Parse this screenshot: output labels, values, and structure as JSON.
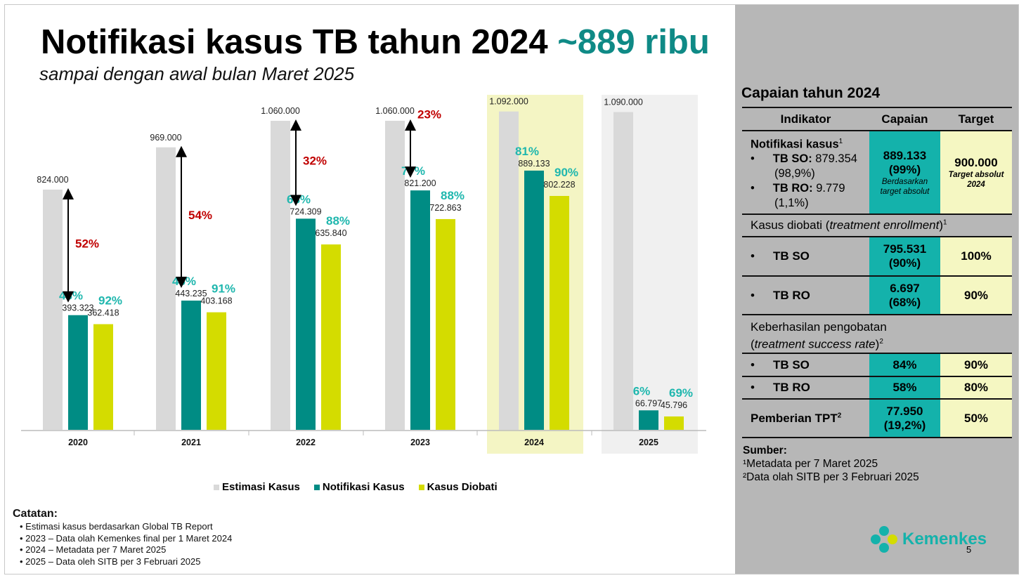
{
  "title": {
    "main": "Notifikasi kasus TB tahun 2024",
    "highlight": "~889 ribu",
    "subtitle": "sampai dengan awal bulan Maret 2025"
  },
  "chart_data": {
    "type": "bar",
    "categories": [
      "2020",
      "2021",
      "2022",
      "2023",
      "2024",
      "2025"
    ],
    "series": [
      {
        "name": "Estimasi Kasus",
        "color": "#d9d9d9",
        "values": [
          824000,
          969000,
          1060000,
          1060000,
          1092000,
          1090000
        ],
        "labels": [
          "824.000",
          "969.000",
          "1.060.000",
          "1.060.000",
          "1.092.000",
          "1.090.000"
        ]
      },
      {
        "name": "Notifikasi Kasus",
        "color": "#008c84",
        "values": [
          393323,
          443235,
          724309,
          821200,
          889133,
          66797
        ],
        "labels": [
          "393.323",
          "443.235",
          "724.309",
          "821.200",
          "889.133",
          "66.797"
        ],
        "pct": [
          "48%",
          "46%",
          "68%",
          "77%",
          "81%",
          "6%"
        ]
      },
      {
        "name": "Kasus Diobati",
        "color": "#d4dc00",
        "values": [
          362418,
          403168,
          635840,
          722863,
          802228,
          45796
        ],
        "labels": [
          "362.418",
          "403.168",
          "635.840",
          "722.863",
          "802.228",
          "45.796"
        ],
        "pct": [
          "92%",
          "91%",
          "88%",
          "88%",
          "90%",
          "69%"
        ]
      }
    ],
    "gap_pct": [
      "52%",
      "54%",
      "32%",
      "23%",
      null,
      null
    ],
    "ylim": [
      0,
      1100000
    ],
    "highlighted": [
      "2024",
      "2025"
    ],
    "legend": "bottom"
  },
  "notes": {
    "title": "Catatan:",
    "items": [
      "Estimasi kasus berdasarkan Global TB Report",
      "2023 – Data olah Kemenkes final per 1 Maret 2024",
      "2024 – Metadata per 7 Maret 2025",
      "2025 – Data oleh SITB per 3 Februari 2025"
    ]
  },
  "panel": {
    "title": "Capaian tahun 2024",
    "headers": [
      "Indikator",
      "Capaian",
      "Target"
    ],
    "notif": {
      "label": "Notifikasi kasus",
      "sup": "1",
      "so_label": "TB SO:",
      "so_val": "879.354",
      "so_pct": "(98,9%)",
      "ro_label": "TB RO:",
      "ro_val": "9.779",
      "ro_pct": "(1,1%)",
      "capaian": "889.133",
      "capaian_pct": "(99%)",
      "capaian_note": "Berdasarkan target absolut",
      "target": "900.000",
      "target_note": "Target absolut 2024"
    },
    "diobati": {
      "label": "Kasus diobati (",
      "label_it": "treatment enrollment",
      "label_end": ")",
      "sup": "1",
      "so": {
        "label": "TB SO",
        "capaian": "795.531",
        "pct": "(90%)",
        "target": "100%"
      },
      "ro": {
        "label": "TB RO",
        "capaian": "6.697",
        "pct": "(68%)",
        "target": "90%"
      }
    },
    "keberhasilan": {
      "label": "Keberhasilan pengobatan",
      "label_it": "treatment success rate",
      "sup": "2",
      "so": {
        "label": "TB SO",
        "capaian": "84%",
        "target": "90%"
      },
      "ro": {
        "label": "TB RO",
        "capaian": "58%",
        "target": "80%"
      }
    },
    "tpt": {
      "label": "Pemberian TPT",
      "sup": "2",
      "capaian": "77.950",
      "pct": "(19,2%)",
      "target": "50%"
    },
    "sources": {
      "title": "Sumber:",
      "items": [
        "¹Metadata per 7 Maret 2025",
        "²Data olah SITB per 3 Februari 2025"
      ]
    }
  },
  "logo": "Kemenkes",
  "page_number": "5",
  "colors": {
    "teal": "#008c84",
    "lightteal": "#14b2ab",
    "yellow": "#d4dc00",
    "red": "#c00000"
  }
}
